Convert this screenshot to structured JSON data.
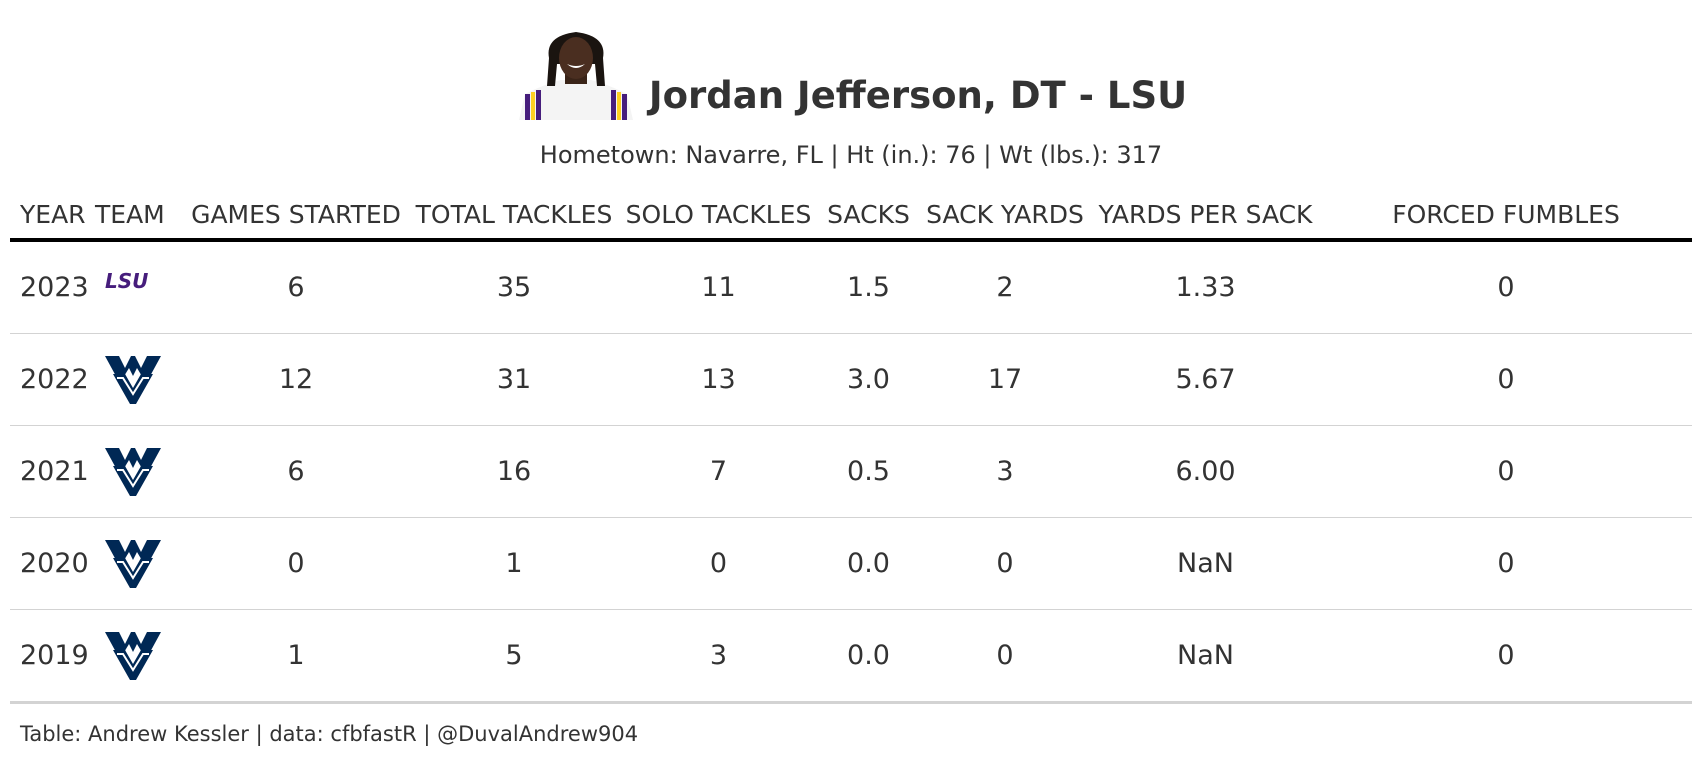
{
  "player": {
    "name": "Jordan Jefferson, DT - LSU",
    "subtitle": "Hometown: Navarre, FL | Ht (in.): 76 | Wt (lbs.): 317"
  },
  "columns": [
    "YEAR",
    "TEAM",
    "GAMES STARTED",
    "TOTAL TACKLES",
    "SOLO TACKLES",
    "SACKS",
    "SACK YARDS",
    "YARDS PER SACK",
    "FORCED FUMBLES"
  ],
  "rows": [
    {
      "year": "2023",
      "team_logo": "lsu-logo",
      "games_started": "6",
      "total_tackles": "35",
      "solo_tackles": "11",
      "sacks": "1.5",
      "sack_yards": "2",
      "yards_per_sack": "1.33",
      "forced_fumbles": "0"
    },
    {
      "year": "2022",
      "team_logo": "wvu-logo",
      "games_started": "12",
      "total_tackles": "31",
      "solo_tackles": "13",
      "sacks": "3.0",
      "sack_yards": "17",
      "yards_per_sack": "5.67",
      "forced_fumbles": "0"
    },
    {
      "year": "2021",
      "team_logo": "wvu-logo",
      "games_started": "6",
      "total_tackles": "16",
      "solo_tackles": "7",
      "sacks": "0.5",
      "sack_yards": "3",
      "yards_per_sack": "6.00",
      "forced_fumbles": "0"
    },
    {
      "year": "2020",
      "team_logo": "wvu-logo",
      "games_started": "0",
      "total_tackles": "1",
      "solo_tackles": "0",
      "sacks": "0.0",
      "sack_yards": "0",
      "yards_per_sack": "NaN",
      "forced_fumbles": "0"
    },
    {
      "year": "2019",
      "team_logo": "wvu-logo",
      "games_started": "1",
      "total_tackles": "5",
      "solo_tackles": "3",
      "sacks": "0.0",
      "sack_yards": "0",
      "yards_per_sack": "NaN",
      "forced_fumbles": "0"
    }
  ],
  "logo_text": {
    "lsu": "LSU"
  },
  "footer": "Table: Andrew Kessler | data: cfbfastR | @DuvalAndrew904",
  "colors": {
    "lsu_purple": "#461D7C",
    "lsu_gold": "#FDD023",
    "wvu_navy": "#002855",
    "header_rule": "#000000",
    "row_rule": "#d3d3d3"
  }
}
